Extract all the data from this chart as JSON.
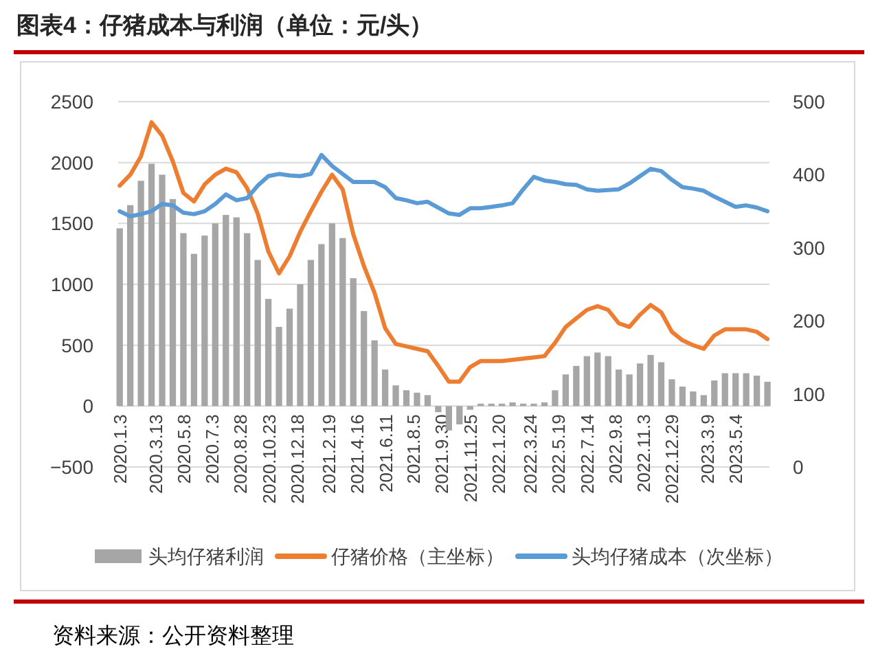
{
  "chart_data": {
    "type": "line",
    "title": "图表4：仔猪成本与利润（单位：元/头）",
    "annotations": [
      "资料来源：公开资料整理"
    ],
    "x": [
      "2020-01-03",
      "2020-01-24",
      "2020-02-14",
      "2020-03-06",
      "2020-03-27",
      "2020-04-17",
      "2020-05-08",
      "2020-05-29",
      "2020-06-19",
      "2020-07-10",
      "2020-07-31",
      "2020-08-21",
      "2020-09-11",
      "2020-10-02",
      "2020-10-23",
      "2020-11-13",
      "2020-12-04",
      "2020-12-25",
      "2021-01-15",
      "2021-02-05",
      "2021-02-26",
      "2021-03-19",
      "2021-04-09",
      "2021-04-30",
      "2021-05-21",
      "2021-06-11",
      "2021-07-02",
      "2021-07-23",
      "2021-08-13",
      "2021-09-03",
      "2021-09-24",
      "2021-10-15",
      "2021-11-05",
      "2021-11-26",
      "2021-12-17",
      "2022-01-07",
      "2022-01-28",
      "2022-02-18",
      "2022-03-11",
      "2022-04-01",
      "2022-04-22",
      "2022-05-13",
      "2022-06-03",
      "2022-06-24",
      "2022-07-15",
      "2022-08-05",
      "2022-08-26",
      "2022-09-16",
      "2022-10-07",
      "2022-10-28",
      "2022-11-18",
      "2022-12-09",
      "2022-12-30",
      "2023-01-20",
      "2023-02-10",
      "2023-03-03",
      "2023-03-24",
      "2023-04-14",
      "2023-05-05",
      "2023-05-26",
      "2023-06-16",
      "2023-07-07"
    ],
    "series": [
      {
        "name": "头均仔猪利润",
        "type": "bar",
        "color": "#a6a6a6",
        "values": [
          1460,
          1650,
          1850,
          1990,
          1900,
          1700,
          1420,
          1250,
          1400,
          1500,
          1570,
          1550,
          1420,
          1200,
          880,
          650,
          800,
          1000,
          1200,
          1330,
          1500,
          1380,
          1050,
          780,
          540,
          300,
          170,
          130,
          110,
          90,
          -50,
          -200,
          -150,
          -30,
          20,
          20,
          20,
          30,
          20,
          20,
          30,
          130,
          260,
          330,
          410,
          440,
          410,
          300,
          260,
          350,
          420,
          360,
          220,
          160,
          120,
          90,
          210,
          270,
          270,
          270,
          250,
          200
        ]
      },
      {
        "name": "仔猪价格（主坐标）",
        "color": "#ed7d31",
        "values": [
          1810,
          1900,
          2050,
          2330,
          2220,
          2010,
          1750,
          1680,
          1820,
          1900,
          1950,
          1920,
          1790,
          1580,
          1270,
          1090,
          1230,
          1430,
          1600,
          1760,
          1900,
          1780,
          1410,
          1150,
          930,
          640,
          510,
          490,
          470,
          450,
          330,
          200,
          200,
          320,
          370,
          370,
          370,
          380,
          390,
          400,
          410,
          520,
          650,
          720,
          790,
          820,
          790,
          680,
          650,
          750,
          830,
          770,
          610,
          540,
          500,
          470,
          580,
          630,
          630,
          630,
          610,
          550
        ]
      },
      {
        "name": "头均仔猪成本（次坐标）",
        "axis": "y2",
        "color": "#5b9bd5",
        "values": [
          350,
          343,
          346,
          350,
          360,
          358,
          348,
          346,
          350,
          360,
          373,
          365,
          368,
          385,
          398,
          401,
          399,
          398,
          401,
          427,
          412,
          401,
          390,
          390,
          390,
          383,
          368,
          365,
          361,
          363,
          355,
          347,
          345,
          354,
          354,
          356,
          358,
          361,
          380,
          397,
          392,
          390,
          387,
          386,
          380,
          378,
          379,
          380,
          388,
          398,
          408,
          405,
          393,
          383,
          381,
          378,
          370,
          363,
          356,
          358,
          355,
          350
        ]
      }
    ],
    "xlim": [
      "2019-12-31",
      "2023-07-11"
    ],
    "xticks": [
      {
        "value": "2020-01-03",
        "label": "2020.1.3"
      },
      {
        "value": "2020-03-13",
        "label": "2020.3.13"
      },
      {
        "value": "2020-05-08",
        "label": "2020.5.8"
      },
      {
        "value": "2020-07-03",
        "label": "2020.7.3"
      },
      {
        "value": "2020-08-28",
        "label": "2020.8.28"
      },
      {
        "value": "2020-10-23",
        "label": "2020.10.23"
      },
      {
        "value": "2020-12-18",
        "label": "2020.12.18"
      },
      {
        "value": "2021-02-19",
        "label": "2021.2.19"
      },
      {
        "value": "2021-04-16",
        "label": "2021.4.16"
      },
      {
        "value": "2021-06-11",
        "label": "2021.6.11"
      },
      {
        "value": "2021-08-05",
        "label": "2021.8.5"
      },
      {
        "value": "2021-09-30",
        "label": "2021.9.30"
      },
      {
        "value": "2021-11-25",
        "label": "2021.11.25"
      },
      {
        "value": "2022-01-20",
        "label": "2022.1.20"
      },
      {
        "value": "2022-03-24",
        "label": "2022.3.24"
      },
      {
        "value": "2022-05-19",
        "label": "2022.5.19"
      },
      {
        "value": "2022-07-14",
        "label": "2022.7.14"
      },
      {
        "value": "2022-09-08",
        "label": "2022.9.8"
      },
      {
        "value": "2022-11-03",
        "label": "2022.11.3"
      },
      {
        "value": "2022-12-29",
        "label": "2022.12.29"
      },
      {
        "value": "2023-03-09",
        "label": "2023.3.9"
      },
      {
        "value": "2023-05-04",
        "label": "2023.5.4"
      }
    ],
    "ylim": [
      -500,
      2500
    ],
    "yticks": [
      {
        "value": -500,
        "label": "−500"
      },
      0,
      500,
      1000,
      1500,
      2000,
      2500
    ],
    "y2lim": [
      0,
      500
    ],
    "y2ticks": [
      0,
      100,
      200,
      300,
      400,
      500
    ],
    "grid": "y",
    "legend": "bottom"
  }
}
